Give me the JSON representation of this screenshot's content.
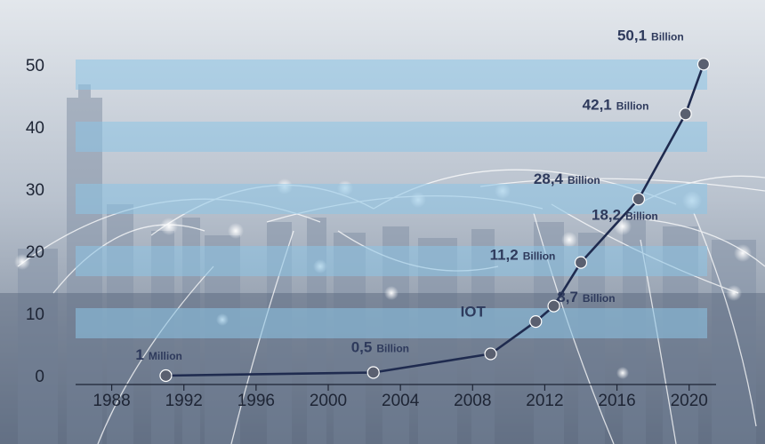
{
  "chart_data": {
    "type": "line",
    "title": "",
    "xlabel": "",
    "ylabel": "",
    "xlim": [
      1986,
      2021
    ],
    "ylim": [
      0,
      55
    ],
    "x_ticks": [
      "1988",
      "1992",
      "1996",
      "2000",
      "2004",
      "2008",
      "2012",
      "2016",
      "2020"
    ],
    "y_ticks": [
      "0",
      "10",
      "20",
      "30",
      "40",
      "50"
    ],
    "series": [
      {
        "x": [
          1991,
          2002.5,
          2009,
          2011.5,
          2012.5,
          2014,
          2017.2,
          2019.8,
          2020.8
        ],
        "y": [
          0.001,
          0.5,
          3.5,
          8.7,
          11.2,
          18.2,
          28.4,
          42.1,
          50.1
        ]
      }
    ],
    "annotations": [
      {
        "value": "1",
        "unit": "Million",
        "x": 1991,
        "y": 0.001
      },
      {
        "value": "0,5",
        "unit": "Billion",
        "x": 2002.5,
        "y": 0.5
      },
      {
        "value": "IOT",
        "unit": "",
        "x": 2009,
        "y": 3.5
      },
      {
        "value": "8,7",
        "unit": "Billion",
        "x": 2011.5,
        "y": 8.7
      },
      {
        "value": "11,2",
        "unit": "Billion",
        "x": 2012.5,
        "y": 11.2
      },
      {
        "value": "18,2",
        "unit": "Billion",
        "x": 2014,
        "y": 18.2
      },
      {
        "value": "28,4",
        "unit": "Billion",
        "x": 2017.2,
        "y": 28.4
      },
      {
        "value": "42,1",
        "unit": "Billion",
        "x": 2019.8,
        "y": 42.1
      },
      {
        "value": "50,1",
        "unit": "Billion",
        "x": 2020.8,
        "y": 50.1
      }
    ],
    "grid": true,
    "colors": {
      "line": "#1f2b4f",
      "marker": "#5a6070",
      "marker_edge": "#ffffff",
      "band": "#8cc4e6",
      "label": "#2e3a5c",
      "background_top": "#d8dde4",
      "background_bottom": "#6f7d90"
    }
  }
}
